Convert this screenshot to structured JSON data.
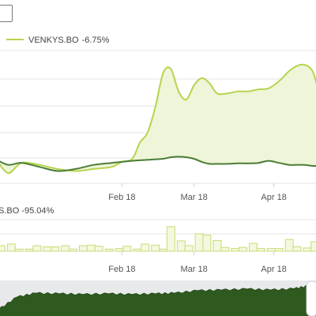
{
  "chart_data": [
    {
      "type": "area",
      "legend": {
        "placement": "top-left"
      },
      "series": [
        {
          "name": "VENKYS.BO",
          "change_label": "-6.75%",
          "color": "#b5d44f",
          "fill": "#eef5d8",
          "x": [
            "2018-01-01",
            "2018-01-05",
            "2018-01-10",
            "2018-01-17",
            "2018-01-24",
            "2018-01-31",
            "2018-02-07",
            "2018-02-14",
            "2018-02-18",
            "2018-02-22",
            "2018-02-25",
            "2018-02-28",
            "2018-03-03",
            "2018-03-06",
            "2018-03-09",
            "2018-03-12",
            "2018-03-15",
            "2018-03-18",
            "2018-03-21",
            "2018-03-24",
            "2018-03-27",
            "2018-03-31",
            "2018-04-04",
            "2018-04-08",
            "2018-04-12",
            "2018-04-16",
            "2018-04-20",
            "2018-04-24",
            "2018-04-27",
            "2018-04-30",
            "2018-05-03",
            "2018-05-05"
          ],
          "y": [
            0,
            -10,
            0,
            -2,
            -6,
            -8,
            -6,
            -4,
            1,
            4,
            20,
            30,
            55,
            88,
            92,
            70,
            62,
            76,
            83,
            78,
            68,
            68,
            70,
            70,
            72,
            73,
            80,
            90,
            95,
            96,
            90,
            74
          ]
        },
        {
          "name": "",
          "color": "#4a7d36",
          "x": [
            "2018-01-01",
            "2018-01-05",
            "2018-01-10",
            "2018-01-17",
            "2018-01-24",
            "2018-01-31",
            "2018-02-07",
            "2018-02-14",
            "2018-02-18",
            "2018-02-22",
            "2018-02-25",
            "2018-02-28",
            "2018-03-03",
            "2018-03-06",
            "2018-03-09",
            "2018-03-12",
            "2018-03-15",
            "2018-03-18",
            "2018-03-21",
            "2018-03-24",
            "2018-03-27",
            "2018-03-31",
            "2018-04-04",
            "2018-04-08",
            "2018-04-12",
            "2018-04-16",
            "2018-04-20",
            "2018-04-24",
            "2018-04-27",
            "2018-04-30",
            "2018-05-03",
            "2018-05-05"
          ],
          "y": [
            2,
            -2,
            0,
            -4,
            -8,
            -6,
            -2,
            0,
            1,
            2,
            2.5,
            3,
            3.5,
            4,
            5.5,
            6,
            5.5,
            4,
            1,
            -1,
            -1,
            -1,
            -0.5,
            -0.5,
            0,
            2,
            0,
            -2,
            -2,
            -2,
            -3,
            -3
          ]
        }
      ],
      "xaxis": {
        "tick_labels": [
          "Feb 18",
          "Mar 18",
          "Apr 18"
        ],
        "tick_dates": [
          "2018-02-18",
          "2018-03-18",
          "2018-04-18"
        ],
        "range": [
          "2018-01-01",
          "2018-05-05"
        ]
      },
      "yaxis": {
        "range": [
          -20,
          110
        ]
      },
      "grid": true
    },
    {
      "type": "bar",
      "series_label": "S.BO -95.04%",
      "bar_color": "#f4f8df",
      "bar_border": "#c6dd73",
      "x": [
        "2018-01-02",
        "2018-01-06",
        "2018-01-09",
        "2018-01-13",
        "2018-01-16",
        "2018-01-20",
        "2018-01-23",
        "2018-01-27",
        "2018-01-30",
        "2018-02-03",
        "2018-02-06",
        "2018-02-09",
        "2018-02-13",
        "2018-02-17",
        "2018-02-20",
        "2018-02-24",
        "2018-02-27",
        "2018-03-03",
        "2018-03-06",
        "2018-03-09",
        "2018-03-13",
        "2018-03-16",
        "2018-03-20",
        "2018-03-23",
        "2018-03-27",
        "2018-03-30",
        "2018-04-03",
        "2018-04-06",
        "2018-04-10",
        "2018-04-13",
        "2018-04-17",
        "2018-04-20",
        "2018-04-24",
        "2018-04-27",
        "2018-05-01",
        "2018-05-04"
      ],
      "values": [
        18,
        24,
        6,
        6,
        18,
        14,
        14,
        18,
        6,
        18,
        20,
        16,
        6,
        8,
        16,
        6,
        24,
        20,
        6,
        85,
        35,
        18,
        60,
        55,
        36,
        12,
        8,
        12,
        26,
        8,
        8,
        8,
        40,
        14,
        10,
        32
      ],
      "xaxis": {
        "tick_labels": [
          "Feb 18",
          "Mar 18",
          "Apr 18"
        ],
        "tick_dates": [
          "2018-02-18",
          "2018-03-18",
          "2018-04-18"
        ]
      },
      "yaxis": {
        "range": [
          0,
          100
        ]
      },
      "grid": true
    },
    {
      "type": "area",
      "role": "navigator",
      "label_fragment": "",
      "color": "#2f5a1f",
      "x": [
        "2017-12-20",
        "2017-12-28",
        "2018-01-05",
        "2018-01-15",
        "2018-01-25",
        "2018-02-05",
        "2018-02-15",
        "2018-02-25",
        "2018-03-05",
        "2018-03-15",
        "2018-03-25",
        "2018-04-05",
        "2018-04-15",
        "2018-04-25",
        "2018-05-01",
        "2018-05-05"
      ],
      "y": [
        20,
        60,
        72,
        70,
        68,
        70,
        68,
        70,
        72,
        80,
        82,
        85,
        82,
        86,
        95,
        90
      ],
      "yaxis": {
        "range": [
          0,
          100
        ]
      }
    }
  ]
}
